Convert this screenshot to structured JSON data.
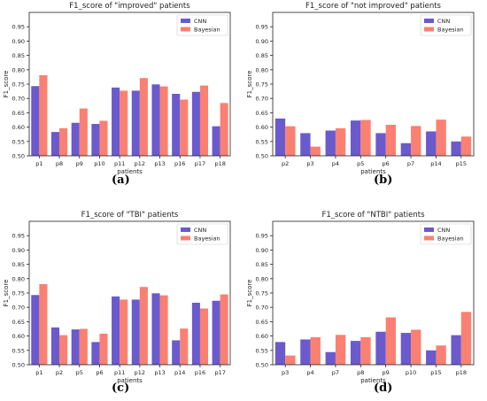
{
  "colors": {
    "cnn": "#6a5acd",
    "bayesian": "#fa8072",
    "axis": "#222222"
  },
  "chart_data": [
    {
      "type": "bar",
      "panel_label": "(a)",
      "title": "F1_score of \"improved\" patients",
      "xlabel": "patients",
      "ylabel": "F1_score",
      "ylim": [
        0.5,
        1.0
      ],
      "yticks": [
        "0.50",
        "0.55",
        "0.60",
        "0.65",
        "0.70",
        "0.75",
        "0.80",
        "0.85",
        "0.90",
        "0.95"
      ],
      "legend_position": "top-right",
      "categories": [
        "p1",
        "p8",
        "p9",
        "p10",
        "p11",
        "p12",
        "p13",
        "p16",
        "p17",
        "p18"
      ],
      "series": [
        {
          "name": "CNN",
          "values": [
            0.743,
            0.583,
            0.615,
            0.611,
            0.738,
            0.727,
            0.749,
            0.716,
            0.723,
            0.603
          ]
        },
        {
          "name": "Bayesian",
          "values": [
            0.781,
            0.596,
            0.665,
            0.622,
            0.727,
            0.771,
            0.742,
            0.696,
            0.745,
            0.684
          ]
        }
      ]
    },
    {
      "type": "bar",
      "panel_label": "(b)",
      "title": "F1_score of \"not improved\" patients",
      "xlabel": "patients",
      "ylabel": "F1_score",
      "ylim": [
        0.5,
        1.0
      ],
      "yticks": [
        "0.50",
        "0.55",
        "0.60",
        "0.65",
        "0.70",
        "0.75",
        "0.80",
        "0.85",
        "0.90",
        "0.95"
      ],
      "legend_position": "top-right",
      "categories": [
        "p2",
        "p3",
        "p4",
        "p5",
        "p6",
        "p7",
        "p14",
        "p15"
      ],
      "series": [
        {
          "name": "CNN",
          "values": [
            0.63,
            0.579,
            0.588,
            0.623,
            0.579,
            0.544,
            0.585,
            0.55
          ]
        },
        {
          "name": "Bayesian",
          "values": [
            0.603,
            0.532,
            0.596,
            0.625,
            0.608,
            0.604,
            0.626,
            0.567
          ]
        }
      ]
    },
    {
      "type": "bar",
      "panel_label": "(c)",
      "title": "F1_score of \"TBI\" patients",
      "xlabel": "patients",
      "ylabel": "F1_score",
      "ylim": [
        0.5,
        1.0
      ],
      "yticks": [
        "0.50",
        "0.55",
        "0.60",
        "0.65",
        "0.70",
        "0.75",
        "0.80",
        "0.85",
        "0.90",
        "0.95"
      ],
      "legend_position": "top-right",
      "categories": [
        "p1",
        "p2",
        "p5",
        "p6",
        "p11",
        "p12",
        "p13",
        "p14",
        "p16",
        "p17"
      ],
      "series": [
        {
          "name": "CNN",
          "values": [
            0.743,
            0.63,
            0.623,
            0.579,
            0.738,
            0.727,
            0.749,
            0.585,
            0.716,
            0.723
          ]
        },
        {
          "name": "Bayesian",
          "values": [
            0.781,
            0.603,
            0.625,
            0.608,
            0.727,
            0.771,
            0.742,
            0.626,
            0.696,
            0.745
          ]
        }
      ]
    },
    {
      "type": "bar",
      "panel_label": "(d)",
      "title": "F1_score of \"NTBI\" patients",
      "xlabel": "patients",
      "ylabel": "F1_score",
      "ylim": [
        0.5,
        1.0
      ],
      "yticks": [
        "0.50",
        "0.55",
        "0.60",
        "0.65",
        "0.70",
        "0.75",
        "0.80",
        "0.85",
        "0.90",
        "0.95"
      ],
      "legend_position": "top-right",
      "categories": [
        "p3",
        "p4",
        "p7",
        "p8",
        "p9",
        "p10",
        "p15",
        "p18"
      ],
      "series": [
        {
          "name": "CNN",
          "values": [
            0.579,
            0.588,
            0.544,
            0.583,
            0.615,
            0.611,
            0.55,
            0.603
          ]
        },
        {
          "name": "Bayesian",
          "values": [
            0.532,
            0.596,
            0.604,
            0.596,
            0.665,
            0.622,
            0.567,
            0.684
          ]
        }
      ]
    }
  ]
}
